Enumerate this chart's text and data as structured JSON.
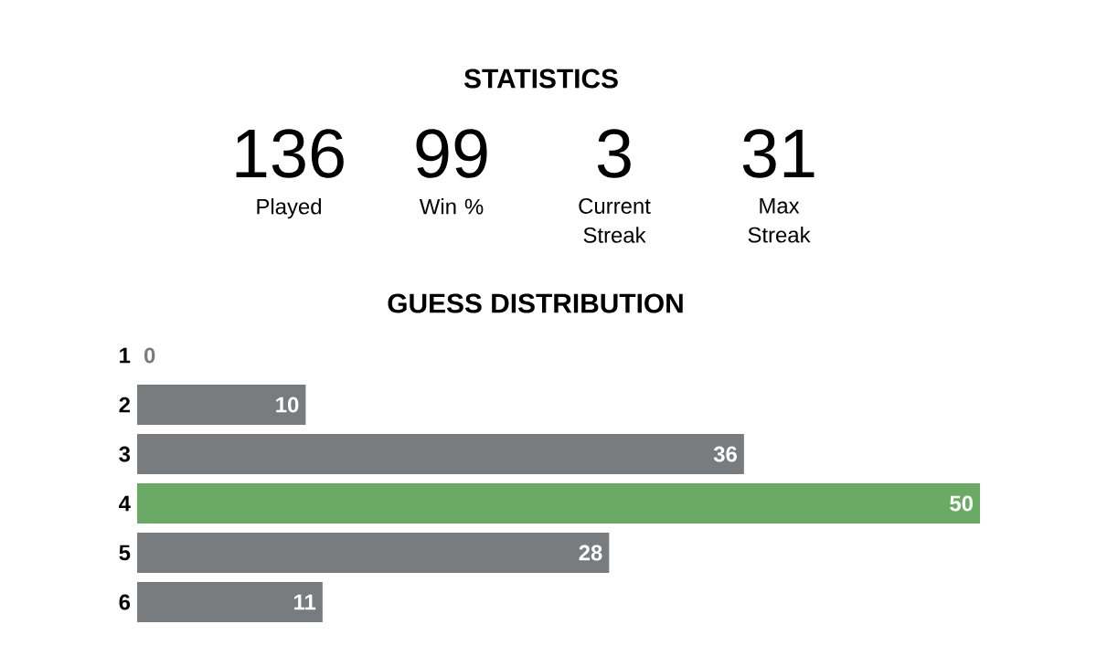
{
  "chart_data": [
    {
      "type": "other",
      "title": "STATISTICS",
      "categories": [
        "Played",
        "Win %",
        "Current Streak",
        "Max Streak"
      ],
      "values": [
        136,
        99,
        3,
        31
      ],
      "data_labels": true
    },
    {
      "type": "bar",
      "orientation": "horizontal",
      "title": "GUESS DISTRIBUTION",
      "categories": [
        "1",
        "2",
        "3",
        "4",
        "5",
        "6"
      ],
      "values": [
        0,
        10,
        36,
        50,
        28,
        11
      ],
      "colors": [
        "#787c7e",
        "#787c7e",
        "#787c7e",
        "#6aaa64",
        "#787c7e",
        "#787c7e"
      ],
      "data_labels": true
    }
  ]
}
